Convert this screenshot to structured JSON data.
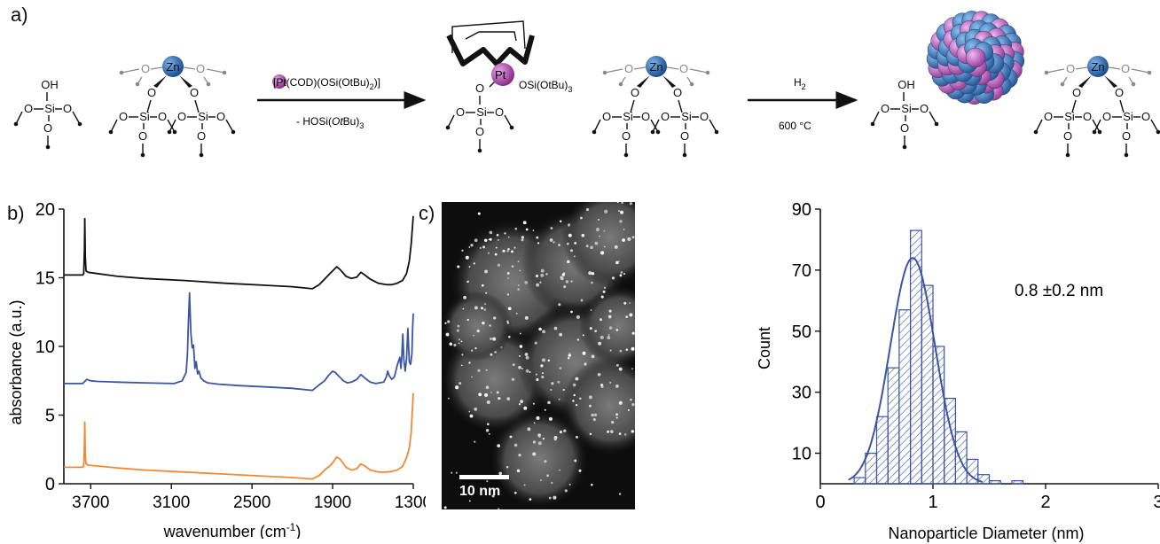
{
  "panel_labels": {
    "a": "a)",
    "b": "b)",
    "c": "c)"
  },
  "scheme": {
    "step1_reagent_prefix": "[Pt(COD)(OSi(OtBu)",
    "step1_reagent_sub": "2",
    "step1_reagent_suffix": ")]",
    "step1_byproduct_prefix": "- HOSi(",
    "step1_byproduct_italic": "Ot",
    "step1_byproduct_mid": "Bu)",
    "step1_byproduct_sub": "3",
    "step2_reagent_text": "H",
    "step2_reagent_sub": "2",
    "step2_condition": "600 °C",
    "pt_label": "Pt",
    "pt_ligand_prefix": "OSi(OtBu)",
    "pt_ligand_sub": "3",
    "zn_label": "Zn",
    "si_label": "Si",
    "o_label": "O",
    "oh_label": "OH",
    "colors": {
      "pt": "#b04fb0",
      "zn": "#2f6fb5",
      "grey_o": "#8a8a8a"
    }
  },
  "tem": {
    "scale_label": "10 nm"
  },
  "chart_data": [
    {
      "type": "line",
      "ylabel": "absorbance (a.u.)",
      "xlabel_prefix": "wavenumber (cm",
      "xlabel_sup": "-1",
      "xlabel_suffix": ")",
      "xlim": [
        3900,
        1300
      ],
      "ylim": [
        0,
        20
      ],
      "x_ticks": [
        3700,
        3100,
        2500,
        1900,
        1300
      ],
      "y_ticks": [
        0,
        5,
        10,
        15,
        20
      ],
      "series": [
        {
          "color": "#111111",
          "x": [
            3900,
            3760,
            3752,
            3747,
            3744,
            3740,
            3735,
            3720,
            3650,
            3500,
            3300,
            3000,
            2700,
            2400,
            2200,
            2050,
            2000,
            1960,
            1920,
            1890,
            1870,
            1845,
            1800,
            1760,
            1720,
            1690,
            1660,
            1620,
            1560,
            1500,
            1460,
            1420,
            1380,
            1350,
            1330,
            1315,
            1305,
            1300
          ],
          "y": [
            15.2,
            15.2,
            15.3,
            17.0,
            19.3,
            16.5,
            15.5,
            15.4,
            15.3,
            15.1,
            14.95,
            14.8,
            14.6,
            14.45,
            14.35,
            14.2,
            14.5,
            14.9,
            15.3,
            15.6,
            15.8,
            15.6,
            15.1,
            14.95,
            15.05,
            15.4,
            15.2,
            14.9,
            14.6,
            14.5,
            14.5,
            14.6,
            14.8,
            15.3,
            16.2,
            17.5,
            18.8,
            19.5
          ]
        },
        {
          "color": "#3b55a3",
          "x": [
            3900,
            3760,
            3730,
            3700,
            3650,
            3500,
            3300,
            3080,
            3020,
            2990,
            2980,
            2975,
            2965,
            2955,
            2945,
            2935,
            2925,
            2915,
            2905,
            2895,
            2880,
            2860,
            2830,
            2750,
            2600,
            2400,
            2200,
            2050,
            2000,
            1960,
            1930,
            1900,
            1880,
            1860,
            1820,
            1790,
            1760,
            1720,
            1690,
            1660,
            1620,
            1580,
            1520,
            1500,
            1490,
            1480,
            1460,
            1440,
            1420,
            1400,
            1392,
            1385,
            1378,
            1370,
            1360,
            1350,
            1340,
            1330,
            1320,
            1310,
            1305,
            1300
          ],
          "y": [
            7.3,
            7.3,
            7.6,
            7.5,
            7.45,
            7.4,
            7.35,
            7.3,
            7.5,
            8.1,
            9.5,
            11.3,
            13.9,
            11.0,
            9.9,
            10.1,
            8.4,
            8.9,
            8.0,
            8.2,
            7.7,
            7.5,
            7.35,
            7.25,
            7.15,
            7.05,
            6.95,
            6.8,
            7.2,
            7.5,
            7.9,
            8.2,
            8.1,
            7.9,
            7.5,
            7.35,
            7.4,
            7.6,
            7.95,
            7.7,
            7.4,
            7.3,
            7.4,
            7.8,
            8.2,
            7.9,
            7.6,
            7.8,
            8.6,
            9.2,
            8.4,
            9.3,
            10.9,
            9.0,
            8.2,
            9.1,
            11.3,
            8.9,
            8.7,
            9.5,
            11.2,
            12.4
          ]
        },
        {
          "color": "#ee8a35",
          "x": [
            3900,
            3760,
            3752,
            3747,
            3744,
            3740,
            3735,
            3720,
            3650,
            3500,
            3300,
            3000,
            2700,
            2400,
            2200,
            2050,
            2000,
            1960,
            1920,
            1890,
            1870,
            1845,
            1800,
            1760,
            1720,
            1690,
            1660,
            1620,
            1560,
            1500,
            1460,
            1420,
            1380,
            1350,
            1330,
            1315,
            1305,
            1300
          ],
          "y": [
            1.2,
            1.2,
            1.3,
            2.8,
            4.5,
            2.0,
            1.45,
            1.35,
            1.3,
            1.15,
            1.0,
            0.85,
            0.7,
            0.55,
            0.45,
            0.35,
            0.6,
            1.0,
            1.3,
            1.65,
            1.95,
            1.8,
            1.2,
            1.0,
            1.1,
            1.45,
            1.3,
            1.0,
            0.85,
            0.85,
            0.9,
            1.0,
            1.25,
            1.9,
            2.6,
            3.8,
            5.6,
            6.6
          ]
        }
      ]
    },
    {
      "type": "bar",
      "ylabel": "Count",
      "xlabel": "Nanoparticle Diameter (nm)",
      "annotation": "0.8 ±0.2 nm",
      "xlim": [
        0,
        3
      ],
      "ylim": [
        0,
        90
      ],
      "x_ticks": [
        0,
        1,
        2,
        3
      ],
      "x_tick_labels": [
        "0",
        "1",
        "2",
        "3"
      ],
      "y_ticks": [
        10,
        30,
        50,
        70,
        90
      ],
      "bin_width": 0.1,
      "bin_starts": [
        0.3,
        0.4,
        0.5,
        0.6,
        0.7,
        0.8,
        0.9,
        1.0,
        1.1,
        1.2,
        1.3,
        1.4,
        1.5,
        1.6,
        1.7
      ],
      "values": [
        2,
        10,
        22,
        38,
        57,
        83,
        65,
        45,
        28,
        17,
        8,
        3,
        1,
        0,
        1
      ],
      "fit": {
        "type": "gaussian",
        "mean": 0.82,
        "sigma": 0.2,
        "amplitude": 74
      },
      "bar_color": "#3b55a3"
    }
  ]
}
